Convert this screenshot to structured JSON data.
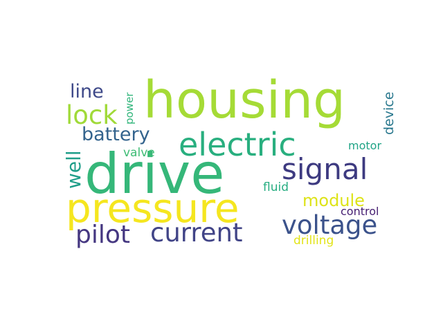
{
  "words": [
    {
      "text": "housing",
      "color": "#a5db36"
    },
    {
      "text": "drive",
      "color": "#35b779"
    },
    {
      "text": "pressure",
      "color": "#f5e61f"
    },
    {
      "text": "electric",
      "color": "#29af7f"
    },
    {
      "text": "signal",
      "color": "#3d3a80"
    },
    {
      "text": "voltage",
      "color": "#3b528b"
    },
    {
      "text": "current",
      "color": "#414487"
    },
    {
      "text": "pilot",
      "color": "#453781"
    },
    {
      "text": "lock",
      "color": "#a0da39"
    },
    {
      "text": "battery",
      "color": "#33638d"
    },
    {
      "text": "line",
      "color": "#3e4989"
    },
    {
      "text": "well",
      "color": "#1f9e89"
    },
    {
      "text": "module",
      "color": "#dde318"
    },
    {
      "text": "valve",
      "color": "#3dbc74"
    },
    {
      "text": "power",
      "color": "#31b57b"
    },
    {
      "text": "motor",
      "color": "#20a486"
    },
    {
      "text": "fluid",
      "color": "#26ad81"
    },
    {
      "text": "device",
      "color": "#2a788e"
    },
    {
      "text": "control",
      "color": "#482173"
    },
    {
      "text": "drilling",
      "color": "#e2e418"
    }
  ]
}
